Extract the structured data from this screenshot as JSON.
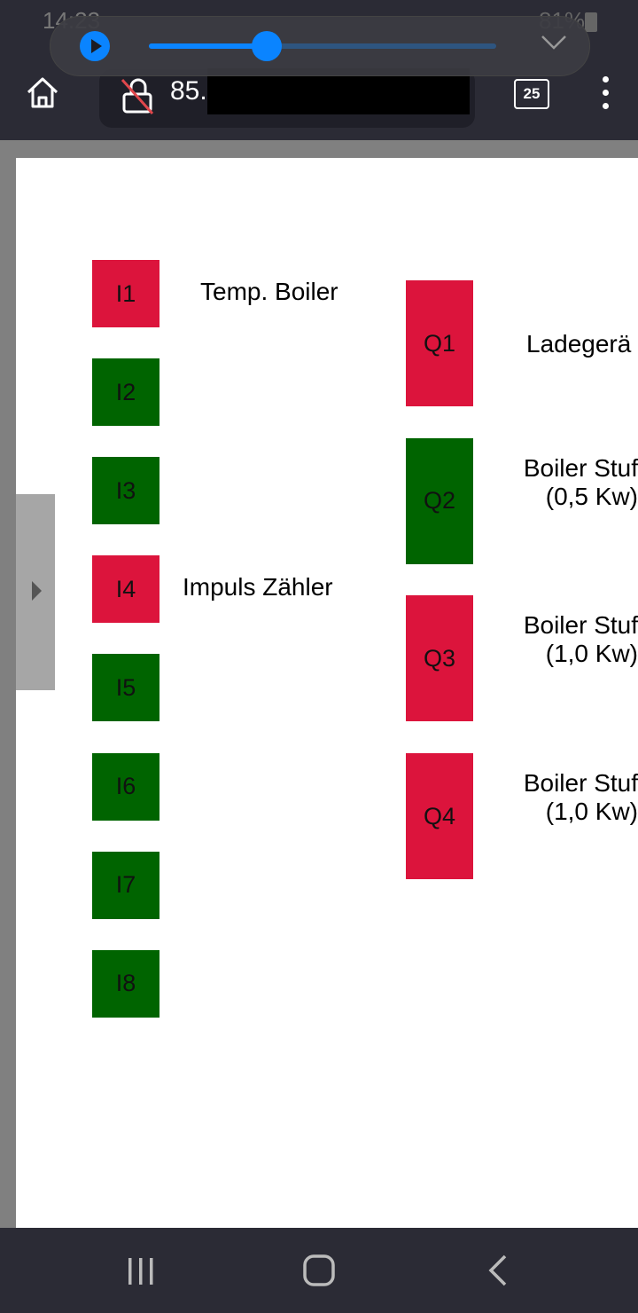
{
  "status_bar": {
    "time": "14:23",
    "battery": "81%"
  },
  "media_player": {
    "progress_percent": 34,
    "play_icon": "play-icon",
    "collapse_icon": "chevron-down-icon"
  },
  "browser": {
    "url": "85.",
    "tab_count": "25"
  },
  "colors": {
    "on": "#dc143c",
    "off": "#006400"
  },
  "inputs": [
    {
      "id": "I1",
      "state": "on",
      "label": "Temp. Boiler"
    },
    {
      "id": "I2",
      "state": "off",
      "label": ""
    },
    {
      "id": "I3",
      "state": "off",
      "label": ""
    },
    {
      "id": "I4",
      "state": "on",
      "label": "Impuls Zähler"
    },
    {
      "id": "I5",
      "state": "off",
      "label": ""
    },
    {
      "id": "I6",
      "state": "off",
      "label": ""
    },
    {
      "id": "I7",
      "state": "off",
      "label": ""
    },
    {
      "id": "I8",
      "state": "off",
      "label": ""
    }
  ],
  "outputs": [
    {
      "id": "Q1",
      "state": "on",
      "label_line1": "Ladegerä",
      "label_line2": ""
    },
    {
      "id": "Q2",
      "state": "off",
      "label_line1": "Boiler Stuf",
      "label_line2": "(0,5 Kw)"
    },
    {
      "id": "Q3",
      "state": "on",
      "label_line1": "Boiler Stuf",
      "label_line2": "(1,0 Kw)"
    },
    {
      "id": "Q4",
      "state": "on",
      "label_line1": "Boiler Stuf",
      "label_line2": "(1,0 Kw)"
    }
  ]
}
